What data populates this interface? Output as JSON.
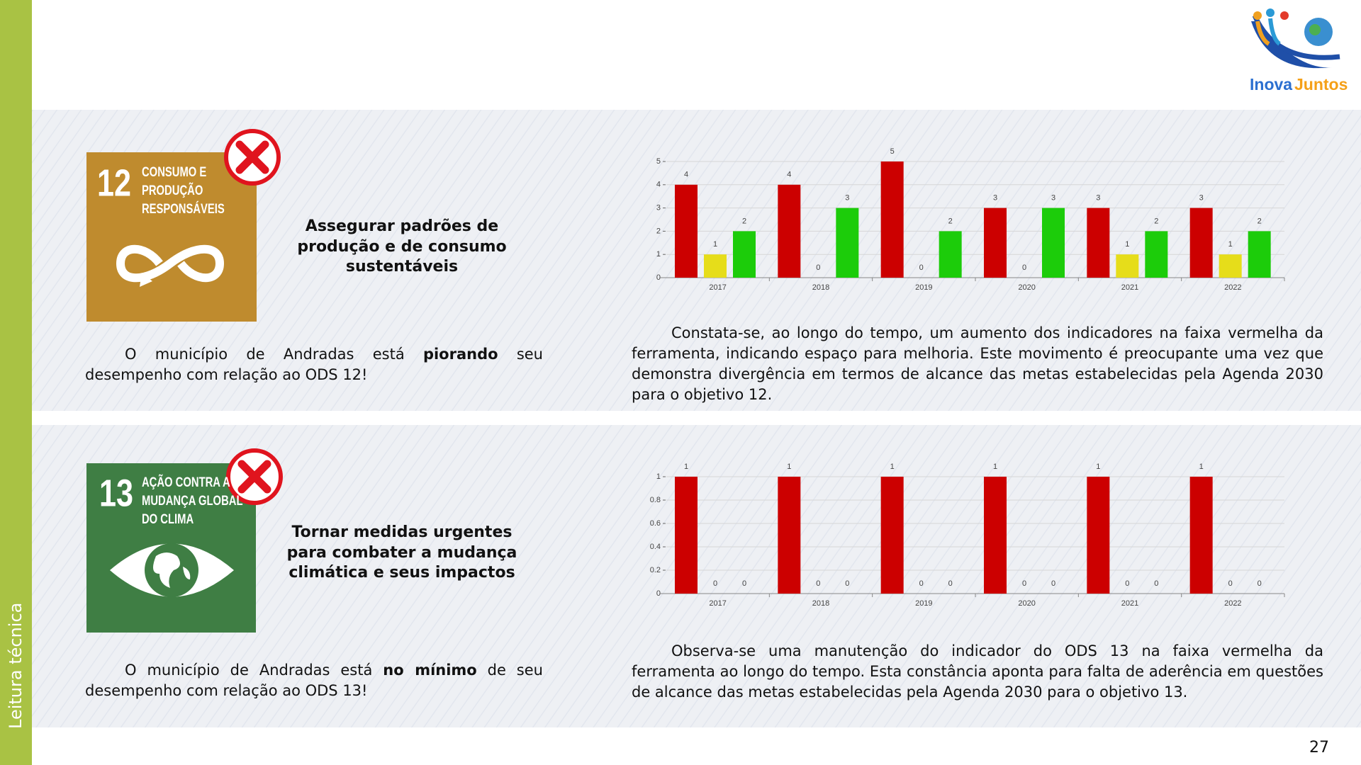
{
  "sidebar_label": "Leitura técnica",
  "logo": [
    "Inova",
    "Juntos"
  ],
  "page_number": "27",
  "sections": [
    {
      "icon_number": "12",
      "icon_lines": [
        "CONSUMO E",
        "PRODUÇÃO",
        "RESPONSÁVEIS"
      ],
      "heading": [
        "Assegurar padrões de",
        "produção e de consumo",
        "sustentáveis"
      ],
      "status": [
        "O município de Andradas está ",
        "piorando",
        " seu desempenho com relação ao ODS 12!"
      ],
      "description": "Constata-se, ao longo do tempo, um aumento dos indicadores na faixa vermelha da ferramenta, indicando espaço para melhoria. Este movimento é preocupante uma vez que demonstra divergência em termos de alcance das metas estabelecidas pela Agenda 2030 para o objetivo 12."
    },
    {
      "icon_number": "13",
      "icon_lines": [
        "AÇÃO CONTRA A",
        "MUDANÇA GLOBAL",
        "DO CLIMA"
      ],
      "heading": [
        "Tornar medidas urgentes",
        "para combater a mudança",
        "climática e seus impactos"
      ],
      "status": [
        "O município de Andradas está ",
        "no mínimo",
        " de seu desempenho com relação ao ODS 13!"
      ],
      "description": "Observa-se uma manutenção do indicador do ODS 13 na faixa vermelha da ferramenta ao longo do tempo. Esta constância aponta para falta de aderência em questões de alcance das metas estabelecidas pela Agenda 2030 para o objetivo 13."
    }
  ],
  "chart_data": [
    {
      "type": "bar",
      "categories": [
        "2017",
        "2018",
        "2019",
        "2020",
        "2021",
        "2022"
      ],
      "series": [
        {
          "color": "#cc0000",
          "values": [
            4,
            4,
            5,
            3,
            3,
            3
          ]
        },
        {
          "color": "#e6dd1a",
          "values": [
            1,
            0,
            0,
            0,
            1,
            1
          ]
        },
        {
          "color": "#1ccc0a",
          "values": [
            2,
            3,
            2,
            3,
            2,
            2
          ]
        }
      ],
      "ylim": [
        0,
        5
      ],
      "yticks": [
        0,
        1,
        2,
        3,
        4,
        5
      ],
      "grid": true,
      "data_labels": true
    },
    {
      "type": "bar",
      "categories": [
        "2017",
        "2018",
        "2019",
        "2020",
        "2021",
        "2022"
      ],
      "series": [
        {
          "color": "#cc0000",
          "values": [
            1,
            1,
            1,
            1,
            1,
            1
          ]
        },
        {
          "color": "#e6dd1a",
          "values": [
            0,
            0,
            0,
            0,
            0,
            0
          ]
        },
        {
          "color": "#1ccc0a",
          "values": [
            0,
            0,
            0,
            0,
            0,
            0
          ]
        }
      ],
      "ylim": [
        0,
        1
      ],
      "yticks": [
        0,
        0.2,
        0.4,
        0.6,
        0.8,
        1
      ],
      "grid": true,
      "data_labels": true
    }
  ]
}
